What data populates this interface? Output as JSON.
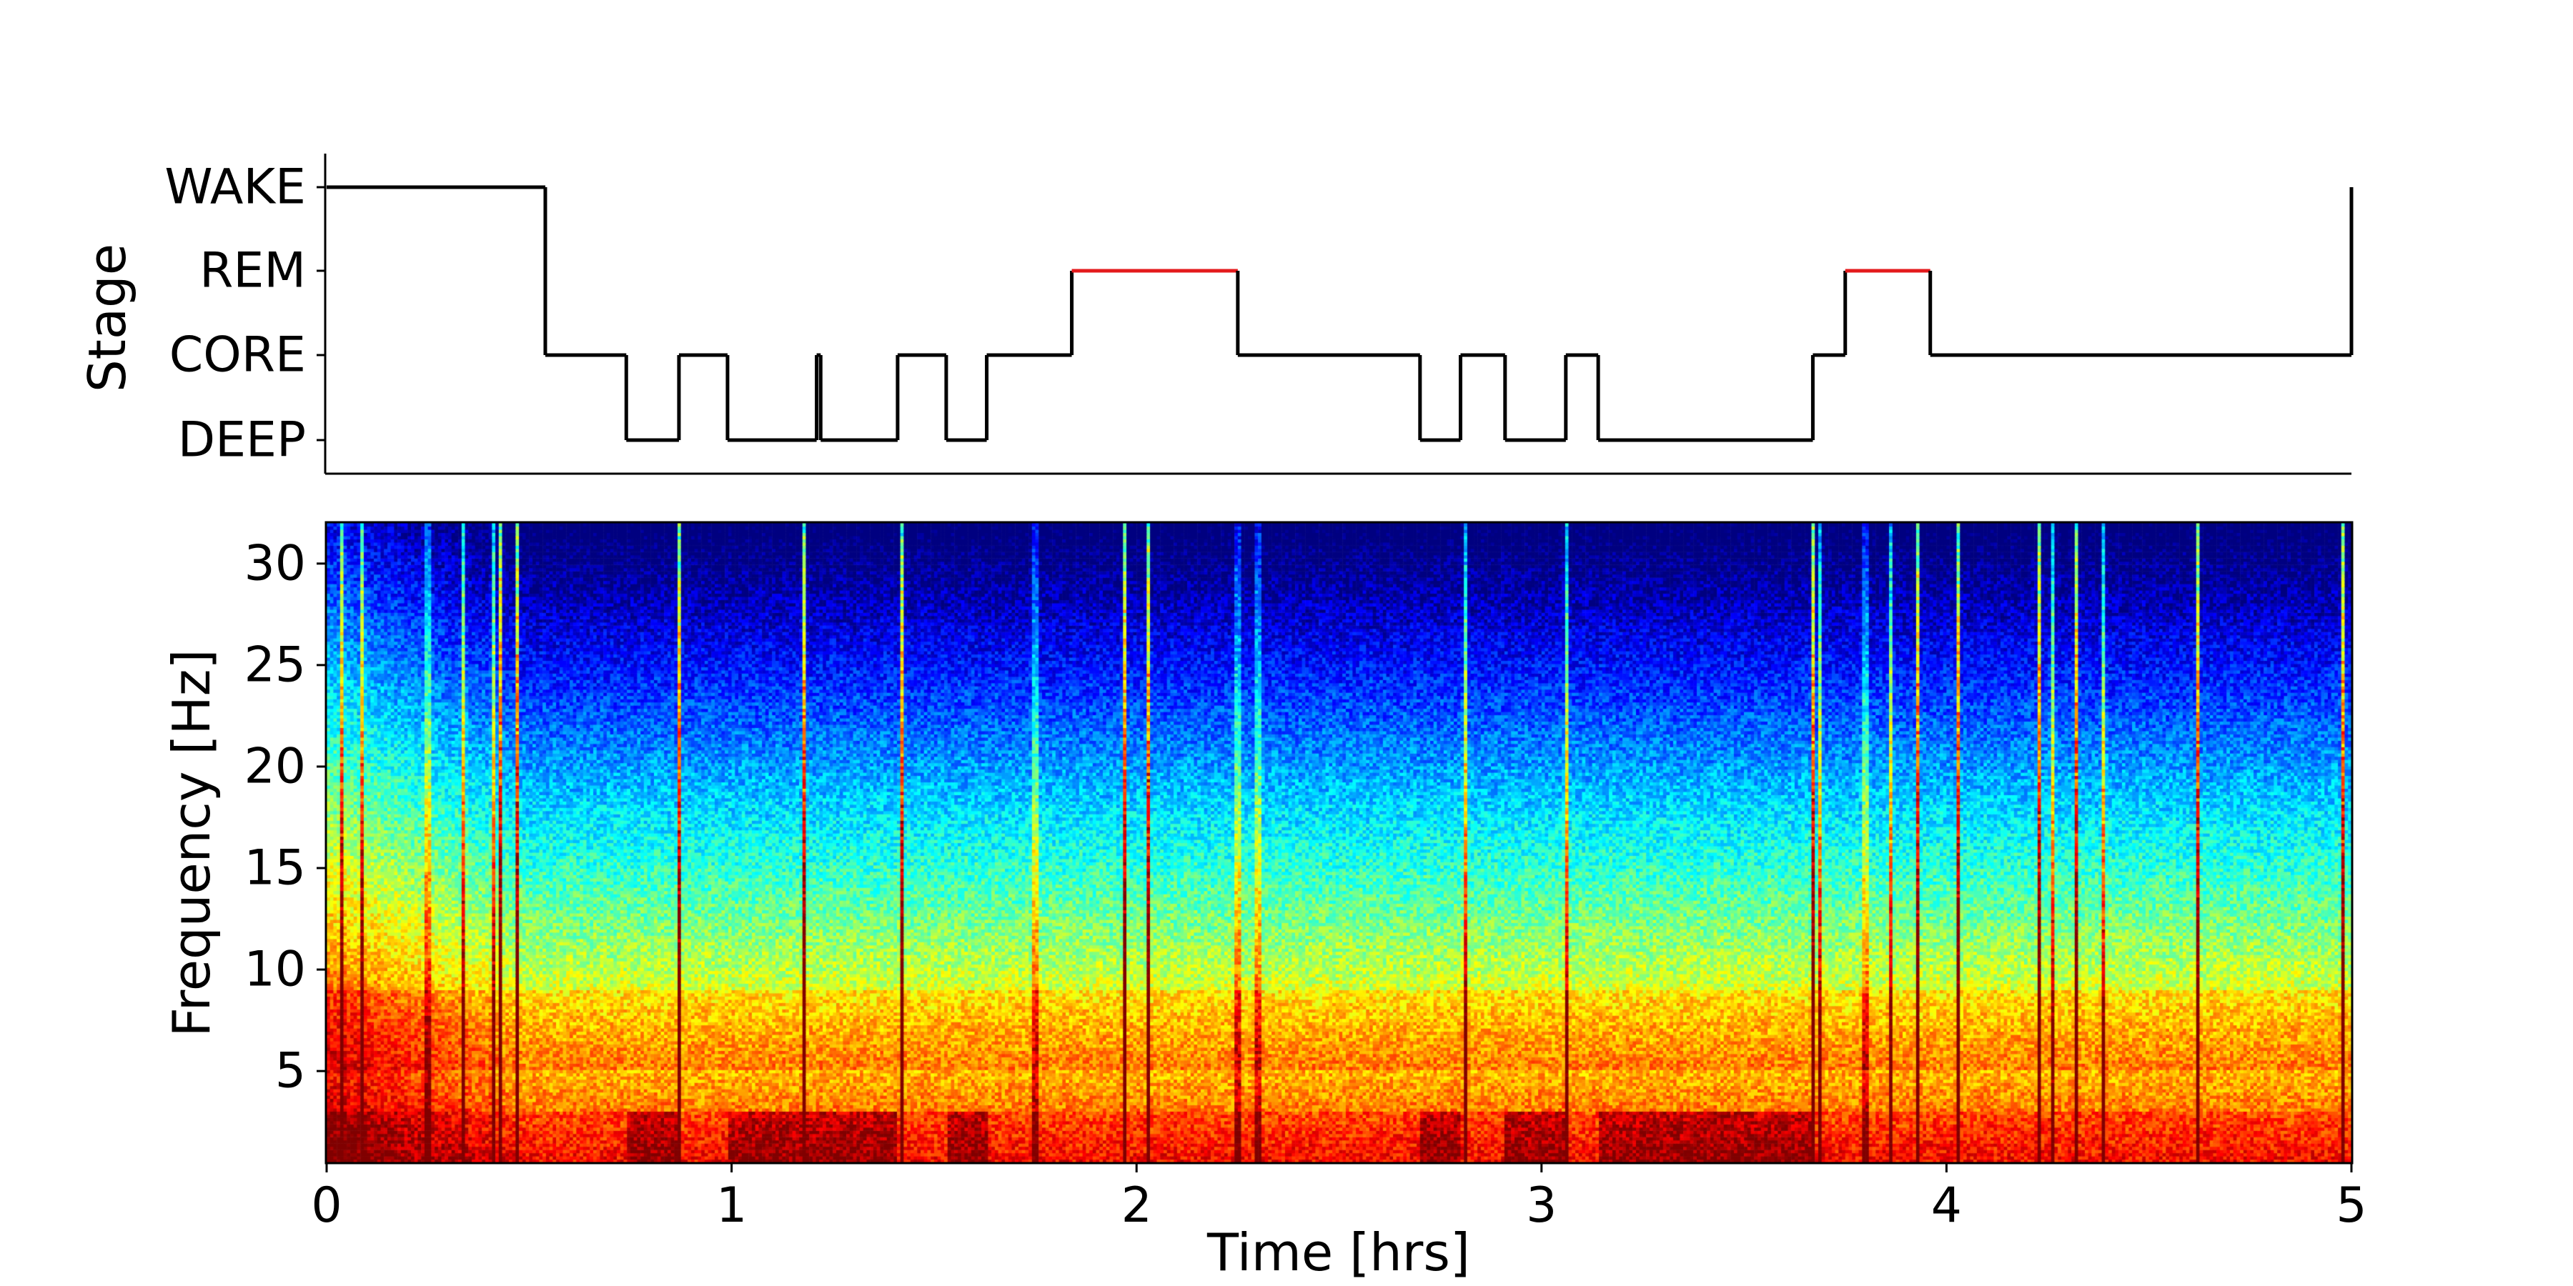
{
  "chart_data": [
    {
      "type": "line",
      "ylabel": "Stage",
      "y_categories": [
        "DEEP",
        "CORE",
        "REM",
        "WAKE"
      ],
      "xlim": [
        0,
        5
      ],
      "series": [
        {
          "x": [
            0,
            0.54,
            0.74,
            0.87,
            0.99,
            1.21,
            1.22,
            1.41,
            1.53,
            1.63,
            1.84,
            2.25,
            2.7,
            2.8,
            2.91,
            3.06,
            3.14,
            3.67,
            3.75,
            3.96,
            5.0,
            5.0
          ],
          "stage": [
            "WAKE",
            "CORE",
            "DEEP",
            "CORE",
            "DEEP",
            "CORE",
            "DEEP",
            "CORE",
            "DEEP",
            "CORE",
            "REM",
            "CORE",
            "DEEP",
            "CORE",
            "DEEP",
            "CORE",
            "DEEP",
            "CORE",
            "REM",
            "CORE",
            "WAKE",
            "WAKE"
          ],
          "color": "#000000",
          "rem_color": "#e41a1c"
        }
      ]
    },
    {
      "type": "heatmap",
      "xlabel": "Time [hrs]",
      "ylabel": "Frequency [Hz]",
      "colormap": "jet",
      "xlim": [
        0,
        5
      ],
      "ylim": [
        0.5,
        32
      ],
      "x_ticks": [
        "0",
        "1",
        "2",
        "3",
        "4",
        "5"
      ],
      "y_ticks": [
        "5",
        "10",
        "15",
        "20",
        "25",
        "30"
      ],
      "artifact_times": [
        0.04,
        0.09,
        0.25,
        0.34,
        0.41,
        0.43,
        0.47,
        0.87,
        1.18,
        1.42,
        1.75,
        1.97,
        2.03,
        2.25,
        2.3,
        2.81,
        3.06,
        3.67,
        3.69,
        3.8,
        3.86,
        3.93,
        4.03,
        4.23,
        4.26,
        4.32,
        4.39,
        4.62,
        4.98
      ],
      "deep_sleep_intervals": [
        [
          0.74,
          0.87
        ],
        [
          0.99,
          1.41
        ],
        [
          1.53,
          1.63
        ],
        [
          2.7,
          2.8
        ],
        [
          2.91,
          3.06
        ],
        [
          3.14,
          3.67
        ]
      ]
    }
  ]
}
